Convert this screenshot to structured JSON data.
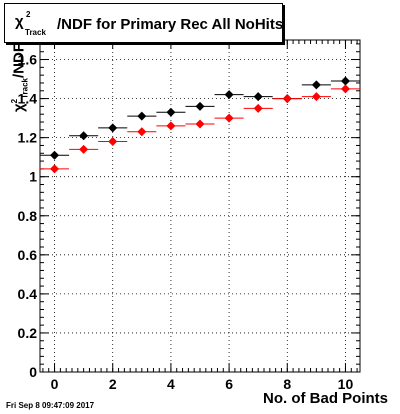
{
  "chart_data": {
    "type": "scatter",
    "title_chi": "χ",
    "title_sup": "2",
    "title_sub": "Track",
    "title_rest": "/NDF for Primary Rec All NoHits",
    "ylabel_chi": "χ",
    "ylabel_sup": "2",
    "ylabel_sub": "Track",
    "ylabel_rest": "/NDF",
    "xlabel": "No. of Bad Points",
    "xlim": [
      -0.5,
      10.5
    ],
    "ylim": [
      0.0,
      1.7
    ],
    "x_ticks": [
      0,
      2,
      4,
      6,
      8,
      10
    ],
    "y_ticks": [
      0,
      0.2,
      0.4,
      0.6,
      0.8,
      1,
      1.2,
      1.4,
      1.6
    ],
    "y_tick_labels": [
      "0",
      "0.2",
      "0.4",
      "0.6",
      "0.8",
      "1",
      "1.2",
      "1.4",
      "1.6"
    ],
    "grid": true,
    "x": [
      0,
      1,
      2,
      3,
      4,
      5,
      6,
      7,
      8,
      9,
      10
    ],
    "series": [
      {
        "color": "#000000",
        "values": [
          1.11,
          1.21,
          1.25,
          1.31,
          1.33,
          1.36,
          1.42,
          1.41,
          1.4,
          1.47,
          1.49
        ]
      },
      {
        "color": "#ff0000",
        "values": [
          1.04,
          1.14,
          1.18,
          1.23,
          1.26,
          1.27,
          1.3,
          1.35,
          1.4,
          1.41,
          1.45
        ]
      }
    ]
  },
  "footer": {
    "timestamp": "Fri Sep  8 09:47:09 2017"
  }
}
